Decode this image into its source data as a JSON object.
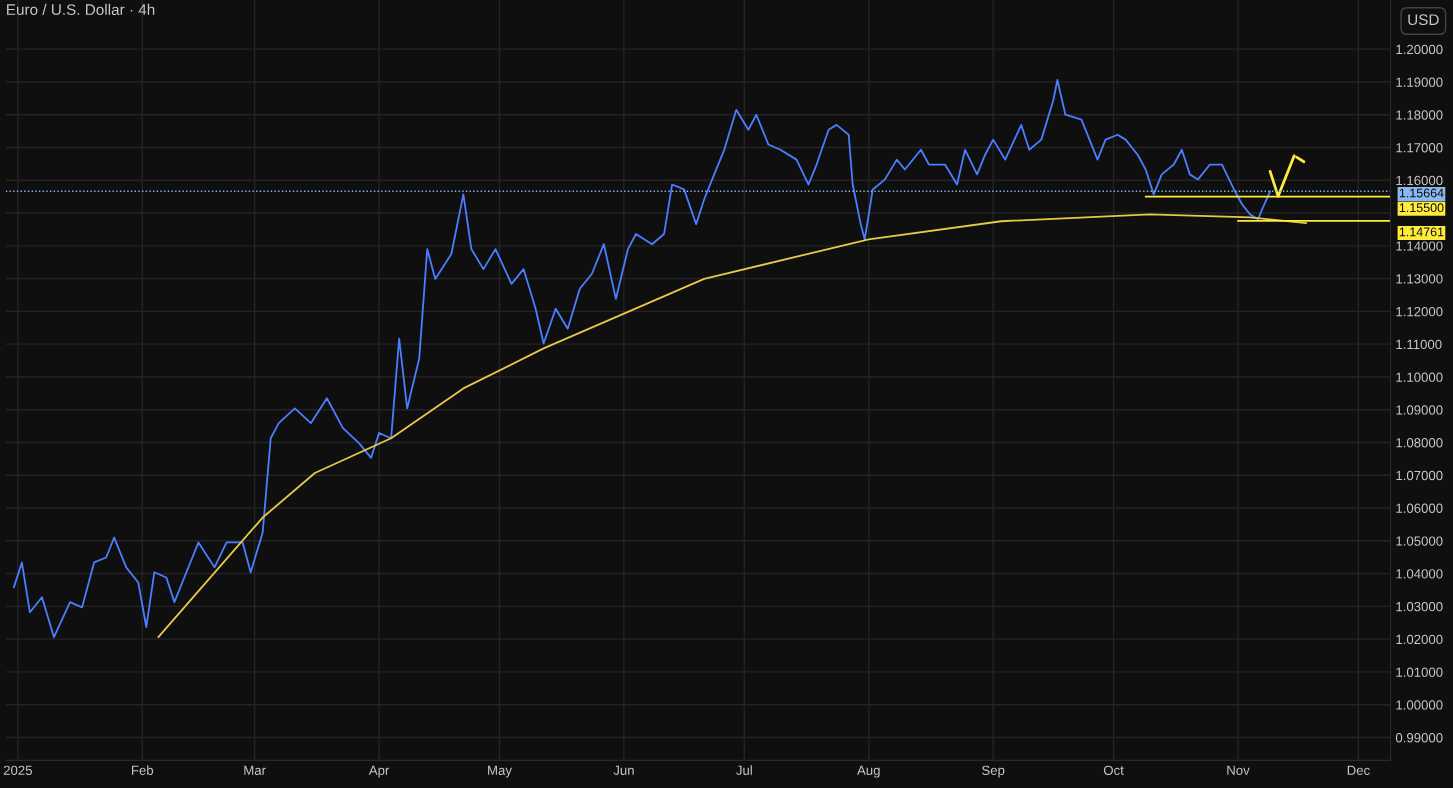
{
  "chart_data": {
    "type": "line",
    "title": "Euro / U.S. Dollar · 4h",
    "annotations": [
      "USD",
      {
        "text": "1.15500",
        "x": "2025-12-09",
        "y": 1.155
      },
      {
        "text": "1.14761",
        "x": "2025-12-09",
        "y": 1.14761
      }
    ],
    "xlim": [
      "2024-12-29",
      "2025-12-09"
    ],
    "xticks": [
      {
        "value": "2025-01-01",
        "label": "2025"
      },
      {
        "value": "2025-02-01",
        "label": "Feb"
      },
      {
        "value": "2025-03-01",
        "label": "Mar"
      },
      {
        "value": "2025-04-01",
        "label": "Apr"
      },
      {
        "value": "2025-05-01",
        "label": "May"
      },
      {
        "value": "2025-06-01",
        "label": "Jun"
      },
      {
        "value": "2025-07-01",
        "label": "Jul"
      },
      {
        "value": "2025-08-01",
        "label": "Aug"
      },
      {
        "value": "2025-09-01",
        "label": "Sep"
      },
      {
        "value": "2025-10-01",
        "label": "Oct"
      },
      {
        "value": "2025-11-01",
        "label": "Nov"
      },
      {
        "value": "2025-12-01",
        "label": "Dec"
      }
    ],
    "ylim": [
      0.983,
      1.215
    ],
    "yticks": [
      {
        "value": 0.99,
        "label": "0.99000"
      },
      {
        "value": 1.0,
        "label": "1.00000"
      },
      {
        "value": 1.01,
        "label": "1.01000"
      },
      {
        "value": 1.02,
        "label": "1.02000"
      },
      {
        "value": 1.03,
        "label": "1.03000"
      },
      {
        "value": 1.04,
        "label": "1.04000"
      },
      {
        "value": 1.05,
        "label": "1.05000"
      },
      {
        "value": 1.06,
        "label": "1.06000"
      },
      {
        "value": 1.07,
        "label": "1.07000"
      },
      {
        "value": 1.08,
        "label": "1.08000"
      },
      {
        "value": 1.09,
        "label": "1.09000"
      },
      {
        "value": 1.1,
        "label": "1.10000"
      },
      {
        "value": 1.11,
        "label": "1.11000"
      },
      {
        "value": 1.12,
        "label": "1.12000"
      },
      {
        "value": 1.13,
        "label": "1.13000"
      },
      {
        "value": 1.14,
        "label": "1.14000"
      },
      {
        "value": 1.15,
        "label": null
      },
      {
        "value": 1.16,
        "label": "1.16000"
      },
      {
        "value": 1.17,
        "label": "1.17000"
      },
      {
        "value": 1.18,
        "label": "1.18000"
      },
      {
        "value": 1.19,
        "label": "1.19000"
      },
      {
        "value": 1.2,
        "label": "1.20000"
      }
    ],
    "grid": true,
    "ref_lines": [
      {
        "axis": "y",
        "value": 1.15664,
        "label": "1.15664",
        "color": "#8ab8f0",
        "line_style": "dotted"
      }
    ],
    "series": [
      {
        "color": "#4a7dff",
        "x": [
          "2024-12-31",
          "2025-01-02",
          "2025-01-04",
          "2025-01-07",
          "2025-01-10",
          "2025-01-14",
          "2025-01-17",
          "2025-01-20",
          "2025-01-23",
          "2025-01-25",
          "2025-01-28",
          "2025-01-31",
          "2025-02-02",
          "2025-02-04",
          "2025-02-07",
          "2025-02-09",
          "2025-02-12",
          "2025-02-15",
          "2025-02-19",
          "2025-02-22",
          "2025-02-26",
          "2025-02-28",
          "2025-03-03",
          "2025-03-05",
          "2025-03-07",
          "2025-03-11",
          "2025-03-15",
          "2025-03-19",
          "2025-03-23",
          "2025-03-27",
          "2025-03-30",
          "2025-04-01",
          "2025-04-04",
          "2025-04-06",
          "2025-04-08",
          "2025-04-11",
          "2025-04-13",
          "2025-04-15",
          "2025-04-19",
          "2025-04-22",
          "2025-04-24",
          "2025-04-27",
          "2025-04-30",
          "2025-05-04",
          "2025-05-07",
          "2025-05-10",
          "2025-05-12",
          "2025-05-15",
          "2025-05-18",
          "2025-05-21",
          "2025-05-24",
          "2025-05-27",
          "2025-05-30",
          "2025-06-02",
          "2025-06-04",
          "2025-06-08",
          "2025-06-11",
          "2025-06-13",
          "2025-06-16",
          "2025-06-19",
          "2025-06-21",
          "2025-06-24",
          "2025-06-26",
          "2025-06-29",
          "2025-07-02",
          "2025-07-04",
          "2025-07-07",
          "2025-07-10",
          "2025-07-14",
          "2025-07-17",
          "2025-07-19",
          "2025-07-22",
          "2025-07-24",
          "2025-07-27",
          "2025-07-28",
          "2025-07-30",
          "2025-07-31",
          "2025-08-02",
          "2025-08-05",
          "2025-08-08",
          "2025-08-10",
          "2025-08-14",
          "2025-08-16",
          "2025-08-20",
          "2025-08-23",
          "2025-08-25",
          "2025-08-28",
          "2025-08-30",
          "2025-09-01",
          "2025-09-04",
          "2025-09-08",
          "2025-09-10",
          "2025-09-13",
          "2025-09-16",
          "2025-09-17",
          "2025-09-19",
          "2025-09-23",
          "2025-09-27",
          "2025-09-29",
          "2025-10-02",
          "2025-10-04",
          "2025-10-07",
          "2025-10-09",
          "2025-10-11",
          "2025-10-13",
          "2025-10-16",
          "2025-10-18",
          "2025-10-20",
          "2025-10-22",
          "2025-10-25",
          "2025-10-28",
          "2025-10-31",
          "2025-11-02",
          "2025-11-04",
          "2025-11-06",
          "2025-11-07",
          "2025-11-09"
        ],
        "values": [
          1.0358,
          1.0434,
          1.0282,
          1.0328,
          1.0206,
          1.0313,
          1.0297,
          1.0434,
          1.0449,
          1.051,
          1.0419,
          1.0373,
          1.0237,
          1.0404,
          1.0388,
          1.0313,
          1.0404,
          1.0495,
          1.0419,
          1.0495,
          1.0495,
          1.0404,
          1.0525,
          1.0813,
          1.0859,
          1.0904,
          1.0859,
          1.0935,
          1.0844,
          1.0798,
          1.0753,
          1.0829,
          1.0813,
          1.1117,
          1.0904,
          1.1056,
          1.139,
          1.1299,
          1.1375,
          1.1557,
          1.139,
          1.1329,
          1.139,
          1.1284,
          1.1329,
          1.1208,
          1.1102,
          1.1208,
          1.1147,
          1.1269,
          1.1314,
          1.1405,
          1.1238,
          1.139,
          1.1436,
          1.1405,
          1.1436,
          1.1587,
          1.1572,
          1.1466,
          1.1542,
          1.1633,
          1.1693,
          1.1815,
          1.1754,
          1.18,
          1.1709,
          1.1693,
          1.1663,
          1.1587,
          1.1648,
          1.1754,
          1.1769,
          1.1739,
          1.1587,
          1.1466,
          1.142,
          1.1572,
          1.1602,
          1.1663,
          1.1633,
          1.1693,
          1.1648,
          1.1648,
          1.1587,
          1.1693,
          1.1618,
          1.1678,
          1.1724,
          1.1663,
          1.1769,
          1.1693,
          1.1724,
          1.1845,
          1.1906,
          1.18,
          1.1785,
          1.1663,
          1.1724,
          1.1739,
          1.1724,
          1.1678,
          1.1633,
          1.1557,
          1.1618,
          1.1648,
          1.1693,
          1.1618,
          1.1602,
          1.1648,
          1.1648,
          1.1572,
          1.1527,
          1.1496,
          1.1481,
          1.1511,
          1.1566
        ]
      },
      {
        "color": "#e6c84a",
        "x": [
          "2025-02-05",
          "2025-03-03",
          "2025-03-16",
          "2025-04-04",
          "2025-04-22",
          "2025-05-12",
          "2025-06-21",
          "2025-08-01",
          "2025-09-03",
          "2025-10-10",
          "2025-11-04",
          "2025-11-18"
        ],
        "values": [
          1.0206,
          1.0571,
          1.0707,
          1.0813,
          1.0965,
          1.1087,
          1.1299,
          1.142,
          1.1475,
          1.1496,
          1.1487,
          1.1469
        ]
      },
      {
        "color": "#ffeb3b",
        "x": [
          "2025-10-09",
          "2025-12-09"
        ],
        "values": [
          1.155,
          1.155
        ]
      },
      {
        "color": "#ffeb3b",
        "x": [
          "2025-11-01",
          "2025-12-09"
        ],
        "values": [
          1.14761,
          1.14761
        ]
      },
      {
        "color": "#ffeb3b",
        "x": [
          "2025-11-09",
          "2025-11-11",
          "2025-11-15",
          "2025-11-18"
        ],
        "values": [
          1.1627,
          1.1551,
          1.1675,
          1.1652
        ]
      }
    ]
  }
}
